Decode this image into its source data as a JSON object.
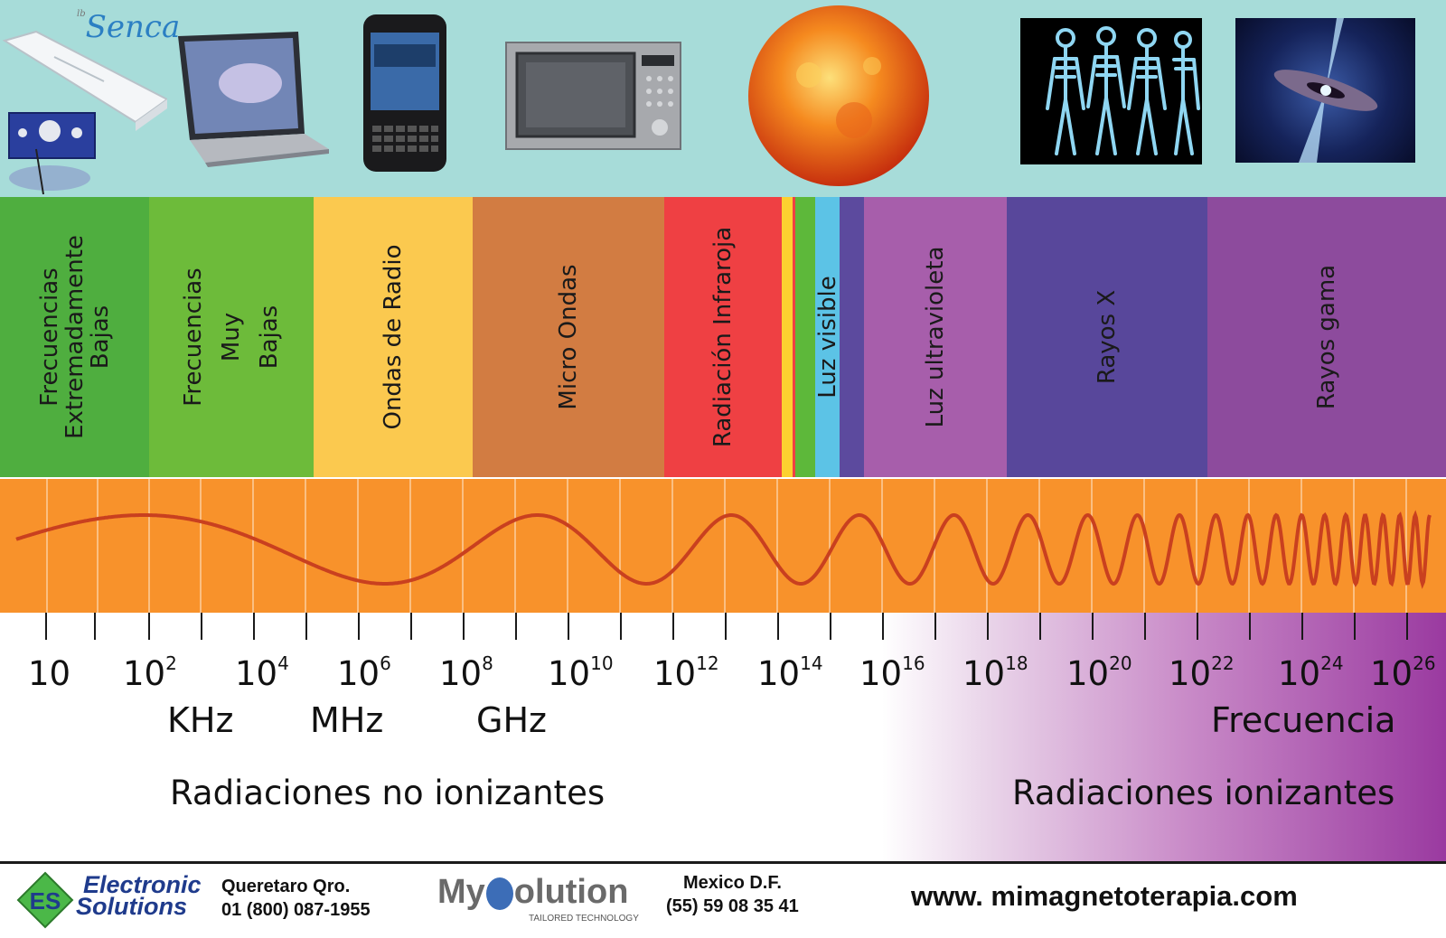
{
  "top_images": [
    {
      "name": "magnetotherapy-device-icon",
      "logo": "Senca"
    },
    {
      "name": "laptop-icon"
    },
    {
      "name": "smartphone-icon"
    },
    {
      "name": "microwave-icon"
    },
    {
      "name": "sun-icon"
    },
    {
      "name": "xray-skeletons-icon"
    },
    {
      "name": "quasar-icon"
    }
  ],
  "bands": [
    {
      "lines": [
        "Frecuencias",
        "Extremadamente",
        "Bajas"
      ],
      "color": "#4fae3f"
    },
    {
      "lines": [
        "Frecuencias",
        "Muy",
        "Bajas"
      ],
      "color": "#6dbb3a"
    },
    {
      "lines": [
        "Ondas de Radio"
      ],
      "color": "#fbc94f"
    },
    {
      "lines": [
        "Micro Ondas"
      ],
      "color": "#d27c42"
    },
    {
      "lines": [
        "Radiación Infraroja"
      ],
      "color": "#ef4043"
    },
    {
      "lines": [],
      "color": "#fcd130"
    },
    {
      "lines": [],
      "color": "#ef4043"
    },
    {
      "lines": [],
      "color": "#5db83a"
    },
    {
      "lines": [
        "Luz visible"
      ],
      "color": "#5cc3e6"
    },
    {
      "lines": [],
      "color": "#5c4a9e"
    },
    {
      "lines": [
        "Luz ultravioleta"
      ],
      "color": "#a75eab"
    },
    {
      "lines": [
        "Rayos X"
      ],
      "color": "#58479b"
    },
    {
      "lines": [
        "Rayos gama"
      ],
      "color": "#8d4b9d"
    }
  ],
  "wave": {
    "background": "#f8922b",
    "line_color": "#c9401f"
  },
  "scale": {
    "tick_labels": [
      {
        "base": "10",
        "exp": ""
      },
      {
        "base": "10",
        "exp": "2"
      },
      {
        "base": "10",
        "exp": "4"
      },
      {
        "base": "10",
        "exp": "6"
      },
      {
        "base": "10",
        "exp": "8"
      },
      {
        "base": "10",
        "exp": "10"
      },
      {
        "base": "10",
        "exp": "12"
      },
      {
        "base": "10",
        "exp": "14"
      },
      {
        "base": "10",
        "exp": "16"
      },
      {
        "base": "10",
        "exp": "18"
      },
      {
        "base": "10",
        "exp": "20"
      },
      {
        "base": "10",
        "exp": "22"
      },
      {
        "base": "10",
        "exp": "24"
      },
      {
        "base": "10",
        "exp": "26"
      }
    ],
    "units": [
      "KHz",
      "MHz",
      "GHz"
    ],
    "axis_title": "Frecuencia",
    "non_ionizing": "Radiaciones no ionizantes",
    "ionizing": "Radiaciones ionizantes"
  },
  "footer": {
    "brand1_line1": "Electronic",
    "brand1_line2": "Solutions",
    "brand1_mark": "ES",
    "city1": "Queretaro Qro.",
    "phone1": "01 (800) 087-1955",
    "brand2_part1": "My",
    "brand2_part2": "olution",
    "brand2_tagline": "TAILORED TECHNOLOGY",
    "city2": "Mexico D.F.",
    "phone2": "(55) 59 08 35 41",
    "website": "www. mimagnetoterapia.com"
  }
}
